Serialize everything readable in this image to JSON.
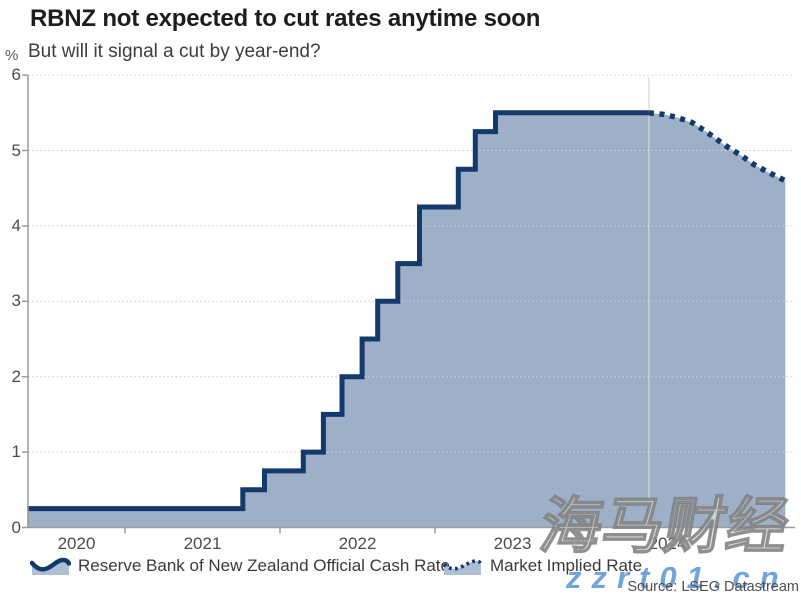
{
  "page": {
    "title": "RBNZ not expected to cut rates anytime soon",
    "subtitle": "But will it signal a cut by year-end?",
    "source": "Source: LSEG Datastream",
    "watermark_cn": "海马财经",
    "watermark_site": "zzrt01.cn"
  },
  "legend": {
    "items": [
      {
        "label": "Reserve Bank of New Zealand Official Cash Rate",
        "style": "solid-area"
      },
      {
        "label": "Market Implied Rate",
        "style": "dotted-area"
      }
    ]
  },
  "colors": {
    "line": "#14396B",
    "fill": "#9DB0C8",
    "legend_fill": "#AEBFD3",
    "axis": "#9B9B9B",
    "grid": "#C9C9C9",
    "grid_over_fill": "rgba(255,255,255,0.5)",
    "divider": "rgba(216,216,216,0.85)"
  },
  "chart_data": {
    "type": "area",
    "title": "RBNZ not expected to cut rates anytime soon",
    "subtitle": "But will it signal a cut by year-end?",
    "ylabel": "%",
    "xlabel": "",
    "ylim": [
      0,
      6
    ],
    "yticks": [
      0,
      1,
      2,
      3,
      4,
      5,
      6
    ],
    "x_year_labels": [
      "2020",
      "2021",
      "2022",
      "2023",
      "2024"
    ],
    "x_range": [
      2020.37,
      2025.26
    ],
    "grid": "dotted-horizontal",
    "legend_position": "bottom",
    "forecast_divider_x": 2024.38,
    "series": [
      {
        "name": "Reserve Bank of New Zealand Official Cash Rate",
        "type": "step",
        "line": "solid",
        "steps": [
          [
            2020.37,
            0.25
          ],
          [
            2021.76,
            0.5
          ],
          [
            2021.9,
            0.75
          ],
          [
            2022.15,
            1.0
          ],
          [
            2022.28,
            1.5
          ],
          [
            2022.4,
            2.0
          ],
          [
            2022.53,
            2.5
          ],
          [
            2022.63,
            3.0
          ],
          [
            2022.76,
            3.5
          ],
          [
            2022.9,
            4.25
          ],
          [
            2023.15,
            4.75
          ],
          [
            2023.26,
            5.25
          ],
          [
            2023.39,
            5.5
          ]
        ],
        "end_x": 2024.38
      },
      {
        "name": "Market Implied Rate",
        "type": "line",
        "line": "dotted",
        "points": [
          [
            2024.38,
            5.5
          ],
          [
            2024.47,
            5.48
          ],
          [
            2024.56,
            5.44
          ],
          [
            2024.66,
            5.37
          ],
          [
            2024.77,
            5.22
          ],
          [
            2024.87,
            5.07
          ],
          [
            2024.97,
            4.94
          ],
          [
            2025.06,
            4.81
          ],
          [
            2025.16,
            4.7
          ],
          [
            2025.26,
            4.6
          ]
        ]
      }
    ]
  }
}
